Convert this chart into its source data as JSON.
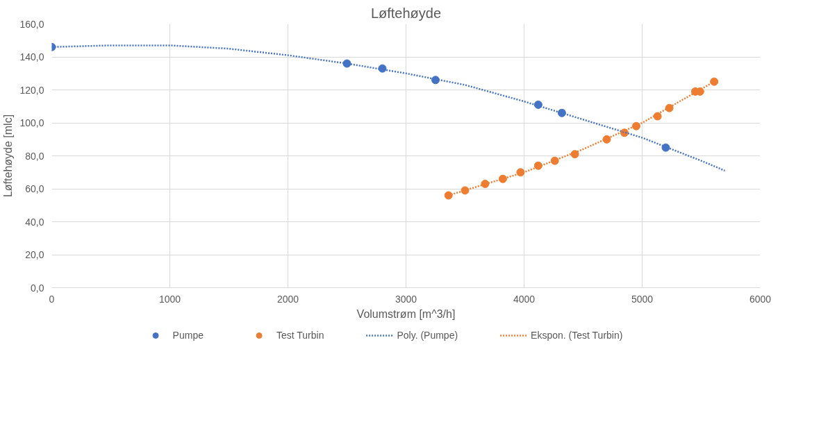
{
  "chart_data": {
    "type": "scatter",
    "title": "Løftehøyde",
    "xlabel": "Volumstrøm [m^3/h]",
    "ylabel": "Løftehøyde [mlc]",
    "xlim": [
      0,
      6000
    ],
    "xticks": [
      0,
      1000,
      2000,
      3000,
      4000,
      5000,
      6000
    ],
    "ylim": [
      0,
      160
    ],
    "yticks": [
      {
        "value": 0,
        "label": "0,0"
      },
      {
        "value": 20,
        "label": "20,0"
      },
      {
        "value": 40,
        "label": "40,0"
      },
      {
        "value": 60,
        "label": "60,0"
      },
      {
        "value": 80,
        "label": "80,0"
      },
      {
        "value": 100,
        "label": "100,0"
      },
      {
        "value": 120,
        "label": "120,0"
      },
      {
        "value": 140,
        "label": "140,0"
      },
      {
        "value": 160,
        "label": "160,0"
      }
    ],
    "grid": true,
    "legend": "bottom",
    "marker": "circle",
    "series": [
      {
        "name": "Pumpe",
        "color": "#4472c4",
        "x": [
          0,
          2500,
          2800,
          3250,
          4120,
          4320,
          5200
        ],
        "values": [
          146,
          136,
          133,
          126,
          111,
          106,
          85
        ]
      },
      {
        "name": "Test Turbin",
        "color": "#ed7d31",
        "x": [
          3360,
          3500,
          3670,
          3820,
          3970,
          4120,
          4260,
          4430,
          4700,
          4850,
          4950,
          5130,
          5230,
          5450,
          5490,
          5610
        ],
        "values": [
          56,
          59,
          63,
          66,
          70,
          74,
          77,
          81,
          90,
          94,
          98,
          104,
          109,
          119,
          119,
          125
        ]
      },
      {
        "name": "Poly. (Pumpe)",
        "color": "#4472c4",
        "type": "line",
        "line_style": "dotted",
        "marker": "none",
        "x": [
          0,
          500,
          1000,
          1500,
          2000,
          2500,
          3000,
          3500,
          4000,
          4500,
          5000,
          5500,
          5700
        ],
        "values": [
          146,
          147,
          147,
          145,
          141,
          136,
          130,
          123,
          113,
          102,
          91,
          77,
          71
        ]
      },
      {
        "name": "Ekspon. (Test Turbin)",
        "color": "#ed7d31",
        "type": "line",
        "line_style": "dotted",
        "marker": "none",
        "x": [
          3360,
          4000,
          4500,
          5000,
          5610
        ],
        "values": [
          56,
          70,
          84,
          100,
          125
        ]
      }
    ]
  }
}
